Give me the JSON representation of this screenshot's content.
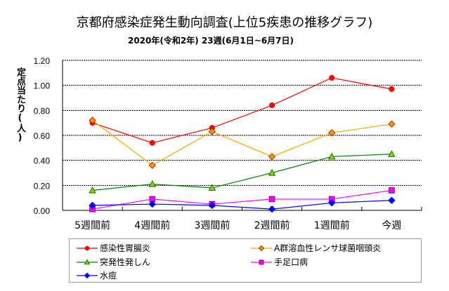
{
  "chart_data": {
    "type": "line",
    "title": "京都府感染症発生動向調査(上位5疾患の推移グラフ)",
    "subtitle": "2020年(令和2年)  23週(6月1日~6月7日)",
    "xlabel": "",
    "ylabel": "定点当たり(人)",
    "ylim": [
      0,
      1.2
    ],
    "yticks": [
      "0.00",
      "0.20",
      "0.40",
      "0.60",
      "0.80",
      "1.00",
      "1.20"
    ],
    "ytick_values": [
      0,
      0.2,
      0.4,
      0.6,
      0.8,
      1.0,
      1.2
    ],
    "grid": "horizontal-dashed",
    "legend_position": "bottom",
    "categories": [
      "5週間前",
      "4週間前",
      "3週間前",
      "2週間前",
      "1週間前",
      "今週"
    ],
    "series": [
      {
        "name": "感染性胃腸炎",
        "color": "#ff0000",
        "marker": "circle",
        "marker_fill": "#ff0000",
        "marker_stroke": "#ff0000",
        "values": [
          0.7,
          0.54,
          0.66,
          0.84,
          1.06,
          0.97
        ]
      },
      {
        "name": "A群溶血性レンサ球菌咽頭炎",
        "color": "#ffa500",
        "marker": "diamond",
        "marker_fill": "#ff9900",
        "marker_stroke": "#993300",
        "values": [
          0.72,
          0.36,
          0.63,
          0.43,
          0.62,
          0.69
        ]
      },
      {
        "name": "突発性発しん",
        "color": "#008000",
        "marker": "triangle",
        "marker_fill": "#99cc00",
        "marker_stroke": "#008000",
        "values": [
          0.16,
          0.21,
          0.18,
          0.3,
          0.43,
          0.45
        ]
      },
      {
        "name": "手足口病",
        "color": "#ff00ff",
        "marker": "square",
        "marker_fill": "#ff00ff",
        "marker_stroke": "#800080",
        "values": [
          0.01,
          0.09,
          0.05,
          0.09,
          0.09,
          0.16
        ]
      },
      {
        "name": "水痘",
        "color": "#0000ff",
        "marker": "diamond",
        "marker_fill": "#0000ff",
        "marker_stroke": "#0000ff",
        "values": [
          0.04,
          0.05,
          0.04,
          0.01,
          0.06,
          0.08
        ]
      }
    ]
  }
}
